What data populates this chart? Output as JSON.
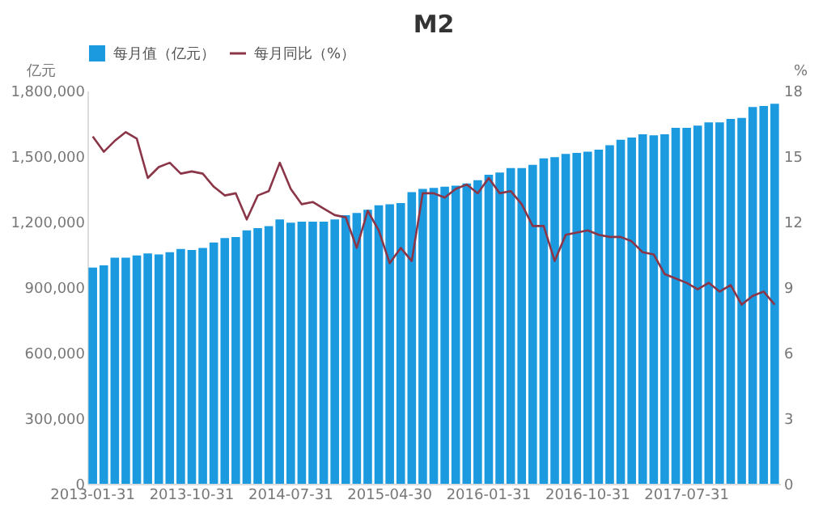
{
  "chart_data": {
    "type": "bar",
    "title": "M2",
    "ylabel": "亿元",
    "y2label": "%",
    "legend": "top",
    "grid": false,
    "categories": [
      "2013-01-31",
      null,
      null,
      null,
      null,
      null,
      null,
      null,
      null,
      "2013-10-31",
      null,
      null,
      null,
      null,
      null,
      null,
      null,
      null,
      "2014-07-31",
      null,
      null,
      null,
      null,
      null,
      null,
      null,
      null,
      "2015-04-30",
      null,
      null,
      null,
      null,
      null,
      null,
      null,
      null,
      "2016-01-31",
      null,
      null,
      null,
      null,
      null,
      null,
      null,
      null,
      "2016-10-31",
      null,
      null,
      null,
      null,
      null,
      null,
      null,
      null,
      "2017-07-31",
      null,
      null,
      null,
      null,
      null,
      null,
      null,
      null
    ],
    "ylim": [
      0,
      1800000
    ],
    "yticks": [
      0,
      {
        "value": 300000,
        "label": "300,000"
      },
      {
        "value": 600000,
        "label": "600,000"
      },
      {
        "value": 900000,
        "label": "900,000"
      },
      {
        "value": 1200000,
        "label": "1,200,000"
      },
      {
        "value": 1500000,
        "label": "1,500,000"
      },
      {
        "value": 1800000,
        "label": "1,800,000"
      }
    ],
    "y2lim": [
      0,
      18
    ],
    "y2ticks": [
      0,
      3,
      6,
      9,
      12,
      15,
      18
    ],
    "series": [
      {
        "name": "每月值（亿元）",
        "color": "#1b9ae0",
        "values": [
          990000,
          1000000,
          1035000,
          1035000,
          1045000,
          1055000,
          1050000,
          1060000,
          1075000,
          1070000,
          1080000,
          1105000,
          1125000,
          1130000,
          1160000,
          1170000,
          1180000,
          1210000,
          1195000,
          1200000,
          1200000,
          1200000,
          1210000,
          1230000,
          1240000,
          1255000,
          1275000,
          1280000,
          1285000,
          1335000,
          1350000,
          1355000,
          1360000,
          1365000,
          1375000,
          1390000,
          1415000,
          1425000,
          1445000,
          1445000,
          1460000,
          1490000,
          1495000,
          1510000,
          1515000,
          1520000,
          1530000,
          1550000,
          1575000,
          1585000,
          1600000,
          1595000,
          1600000,
          1630000,
          1630000,
          1640000,
          1655000,
          1655000,
          1670000,
          1675000,
          1725000,
          1730000,
          1740000
        ]
      },
      {
        "name": "每月同比（%）",
        "type": "line",
        "axis": "y2",
        "color": "#8a3548",
        "values": [
          15.9,
          15.2,
          15.7,
          16.1,
          15.8,
          14.0,
          14.5,
          14.7,
          14.2,
          14.3,
          14.2,
          13.6,
          13.2,
          13.3,
          12.1,
          13.2,
          13.4,
          14.7,
          13.5,
          12.8,
          12.9,
          12.6,
          12.3,
          12.2,
          10.8,
          12.5,
          11.6,
          10.1,
          10.8,
          10.2,
          13.3,
          13.3,
          13.1,
          13.5,
          13.7,
          13.3,
          14.0,
          13.3,
          13.4,
          12.8,
          11.8,
          11.8,
          10.2,
          11.4,
          11.5,
          11.6,
          11.4,
          11.3,
          11.3,
          11.1,
          10.6,
          10.5,
          9.6,
          9.4,
          9.2,
          8.9,
          9.2,
          8.8,
          9.1,
          8.2,
          8.6,
          8.8,
          8.2
        ]
      }
    ]
  }
}
